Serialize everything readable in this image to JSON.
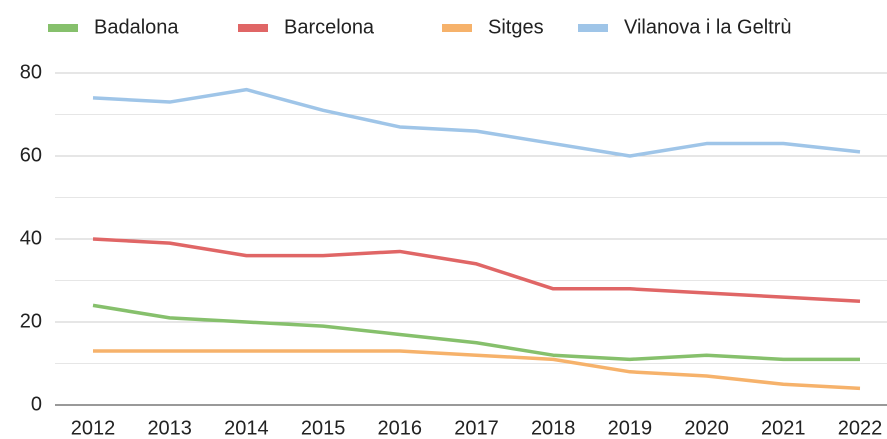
{
  "chart_data": {
    "type": "line",
    "categories": [
      "2012",
      "2013",
      "2014",
      "2015",
      "2016",
      "2017",
      "2018",
      "2019",
      "2020",
      "2021",
      "2022"
    ],
    "series": [
      {
        "name": "Badalona",
        "color": "#86c06c",
        "values": [
          24,
          21,
          20,
          19,
          17,
          15,
          12,
          11,
          12,
          11,
          11
        ]
      },
      {
        "name": "Barcelona",
        "color": "#e06666",
        "values": [
          40,
          39,
          36,
          36,
          37,
          34,
          28,
          28,
          27,
          26,
          25
        ]
      },
      {
        "name": "Sitges",
        "color": "#f6b26b",
        "values": [
          13,
          13,
          13,
          13,
          13,
          12,
          11,
          8,
          7,
          5,
          4
        ]
      },
      {
        "name": "Vilanova i la Geltrù",
        "color": "#9fc5e8",
        "values": [
          74,
          73,
          76,
          71,
          67,
          66,
          63,
          60,
          63,
          63,
          61
        ]
      }
    ],
    "ylim": [
      0,
      80
    ],
    "yticks": [
      0,
      20,
      40,
      60,
      80
    ],
    "minor_yticks": [
      10,
      30,
      50,
      70
    ],
    "grid": true,
    "legend": "top"
  }
}
